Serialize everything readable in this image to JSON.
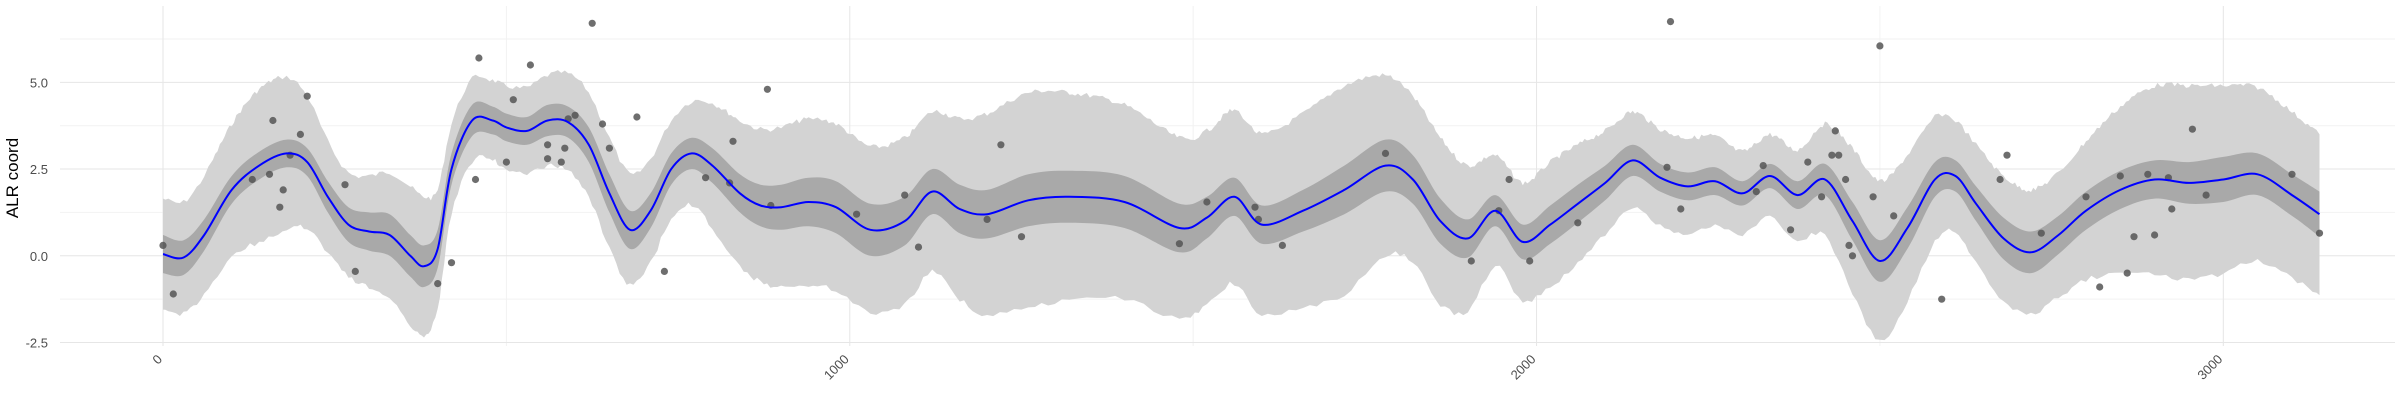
{
  "chart_data": {
    "type": "line",
    "title": "",
    "xlabel": "",
    "ylabel": "ALR coord",
    "xlim": [
      -150,
      3250
    ],
    "ylim": [
      -2.6,
      7.2
    ],
    "x_ticks": [
      0,
      1000,
      2000,
      3000
    ],
    "x_tick_labels": [
      "0",
      "1000",
      "2000",
      "3000"
    ],
    "y_ticks": [
      -2.5,
      0.0,
      2.5,
      5.0
    ],
    "y_tick_labels": [
      "-2.5",
      "0.0",
      "2.5",
      "5.0"
    ],
    "grid": true,
    "legend": "none",
    "colors": {
      "mean_line": "#0000ff",
      "inner_band": "#a9a9a9",
      "outer_band": "#d3d3d3",
      "points": "#555555",
      "grid_major": "#e6e6e6",
      "grid_minor": "#f2f2f2"
    },
    "series": [
      {
        "type": "line",
        "x": [
          0,
          30,
          60,
          100,
          140,
          180,
          210,
          240,
          270,
          300,
          330,
          360,
          380,
          400,
          420,
          450,
          480,
          500,
          530,
          560,
          590,
          620,
          650,
          680,
          710,
          740,
          770,
          800,
          840,
          870,
          900,
          940,
          980,
          1030,
          1080,
          1120,
          1160,
          1200,
          1260,
          1320,
          1400,
          1480,
          1520,
          1560,
          1600,
          1660,
          1720,
          1780,
          1820,
          1860,
          1900,
          1940,
          1980,
          2020,
          2060,
          2100,
          2140,
          2180,
          2220,
          2260,
          2300,
          2340,
          2380,
          2420,
          2460,
          2500,
          2540,
          2580,
          2610,
          2640,
          2680,
          2720,
          2760,
          2800,
          2850,
          2900,
          2950,
          3000,
          3050,
          3100,
          3140
        ],
        "y": [
          0.05,
          -0.05,
          0.6,
          1.9,
          2.6,
          2.95,
          2.7,
          1.7,
          0.9,
          0.7,
          0.6,
          0.0,
          -0.3,
          0.2,
          2.5,
          3.9,
          3.9,
          3.7,
          3.6,
          3.9,
          3.85,
          3.2,
          1.8,
          0.75,
          1.3,
          2.5,
          2.95,
          2.6,
          1.8,
          1.45,
          1.4,
          1.55,
          1.4,
          0.75,
          1.0,
          1.85,
          1.35,
          1.2,
          1.6,
          1.7,
          1.55,
          0.8,
          1.1,
          1.7,
          0.9,
          1.3,
          1.9,
          2.6,
          2.2,
          1.0,
          0.5,
          1.3,
          0.4,
          0.9,
          1.5,
          2.1,
          2.75,
          2.25,
          2.0,
          2.15,
          1.8,
          2.3,
          1.75,
          2.2,
          1.0,
          -0.15,
          0.8,
          2.2,
          2.3,
          1.5,
          0.5,
          0.1,
          0.6,
          1.3,
          1.9,
          2.2,
          2.1,
          2.2,
          2.35,
          1.75,
          1.2
        ],
        "inner_band_halfwidth": [
          0.55,
          0.5,
          0.45,
          0.4,
          0.4,
          0.4,
          0.4,
          0.45,
          0.5,
          0.55,
          0.6,
          0.6,
          0.6,
          0.55,
          0.45,
          0.45,
          0.4,
          0.4,
          0.4,
          0.45,
          0.45,
          0.5,
          0.55,
          0.55,
          0.5,
          0.45,
          0.45,
          0.5,
          0.55,
          0.6,
          0.65,
          0.7,
          0.75,
          0.75,
          0.7,
          0.65,
          0.7,
          0.7,
          0.75,
          0.75,
          0.75,
          0.7,
          0.6,
          0.55,
          0.55,
          0.6,
          0.7,
          0.75,
          0.7,
          0.65,
          0.55,
          0.45,
          0.5,
          0.55,
          0.55,
          0.5,
          0.45,
          0.4,
          0.4,
          0.4,
          0.35,
          0.35,
          0.4,
          0.45,
          0.55,
          0.6,
          0.6,
          0.5,
          0.45,
          0.5,
          0.6,
          0.6,
          0.55,
          0.55,
          0.55,
          0.55,
          0.6,
          0.65,
          0.6,
          0.6,
          0.65
        ],
        "outer_band_halfwidth": [
          1.6,
          1.6,
          1.7,
          1.9,
          2.2,
          2.2,
          1.9,
          1.6,
          1.5,
          1.6,
          1.8,
          2.0,
          2.0,
          1.7,
          1.3,
          1.2,
          1.15,
          1.2,
          1.25,
          1.3,
          1.4,
          1.5,
          1.6,
          1.6,
          1.5,
          1.4,
          1.5,
          1.8,
          2.1,
          2.2,
          2.3,
          2.4,
          2.4,
          2.4,
          2.4,
          2.3,
          2.6,
          2.9,
          3.1,
          3.0,
          2.8,
          2.6,
          2.5,
          2.5,
          2.6,
          2.8,
          3.0,
          2.6,
          2.4,
          2.4,
          2.1,
          1.6,
          1.7,
          1.8,
          1.7,
          1.5,
          1.4,
          1.4,
          1.4,
          1.3,
          1.2,
          1.2,
          1.3,
          1.6,
          2.1,
          2.3,
          2.1,
          1.8,
          1.6,
          1.7,
          1.8,
          1.8,
          1.8,
          2.0,
          2.4,
          2.7,
          2.8,
          2.7,
          2.5,
          2.4,
          2.3
        ]
      },
      {
        "type": "scatter",
        "points": [
          [
            0,
            0.3
          ],
          [
            15,
            -1.1
          ],
          [
            130,
            2.2
          ],
          [
            155,
            2.35
          ],
          [
            160,
            3.9
          ],
          [
            170,
            1.4
          ],
          [
            175,
            1.9
          ],
          [
            185,
            2.9
          ],
          [
            200,
            3.5
          ],
          [
            210,
            4.6
          ],
          [
            265,
            2.05
          ],
          [
            280,
            -0.45
          ],
          [
            400,
            -0.8
          ],
          [
            420,
            -0.2
          ],
          [
            455,
            2.2
          ],
          [
            460,
            5.7
          ],
          [
            500,
            2.7
          ],
          [
            510,
            4.5
          ],
          [
            535,
            5.5
          ],
          [
            560,
            3.2
          ],
          [
            560,
            2.8
          ],
          [
            580,
            2.7
          ],
          [
            585,
            3.1
          ],
          [
            590,
            3.95
          ],
          [
            600,
            4.05
          ],
          [
            625,
            6.7
          ],
          [
            640,
            3.8
          ],
          [
            650,
            3.1
          ],
          [
            690,
            4.0
          ],
          [
            730,
            -0.45
          ],
          [
            790,
            2.25
          ],
          [
            825,
            2.1
          ],
          [
            830,
            3.3
          ],
          [
            880,
            4.8
          ],
          [
            885,
            1.45
          ],
          [
            1010,
            1.2
          ],
          [
            1080,
            1.75
          ],
          [
            1100,
            0.25
          ],
          [
            1200,
            1.05
          ],
          [
            1220,
            3.2
          ],
          [
            1250,
            0.55
          ],
          [
            1480,
            0.35
          ],
          [
            1520,
            1.55
          ],
          [
            1590,
            1.4
          ],
          [
            1595,
            1.05
          ],
          [
            1630,
            0.3
          ],
          [
            1780,
            2.95
          ],
          [
            1905,
            -0.15
          ],
          [
            1945,
            1.3
          ],
          [
            1960,
            2.2
          ],
          [
            1990,
            -0.15
          ],
          [
            2060,
            0.95
          ],
          [
            2190,
            2.55
          ],
          [
            2195,
            6.75
          ],
          [
            2210,
            1.35
          ],
          [
            2320,
            1.85
          ],
          [
            2330,
            2.6
          ],
          [
            2370,
            0.75
          ],
          [
            2395,
            2.7
          ],
          [
            2415,
            1.7
          ],
          [
            2430,
            2.9
          ],
          [
            2435,
            3.6
          ],
          [
            2440,
            2.9
          ],
          [
            2450,
            2.2
          ],
          [
            2455,
            0.3
          ],
          [
            2460,
            0.0
          ],
          [
            2490,
            1.7
          ],
          [
            2500,
            6.05
          ],
          [
            2520,
            1.15
          ],
          [
            2590,
            -1.25
          ],
          [
            2675,
            2.2
          ],
          [
            2685,
            2.9
          ],
          [
            2735,
            0.65
          ],
          [
            2800,
            1.7
          ],
          [
            2820,
            -0.9
          ],
          [
            2850,
            2.3
          ],
          [
            2860,
            -0.5
          ],
          [
            2870,
            0.55
          ],
          [
            2890,
            2.35
          ],
          [
            2900,
            0.6
          ],
          [
            2920,
            2.25
          ],
          [
            2925,
            1.35
          ],
          [
            2955,
            3.65
          ],
          [
            2975,
            1.75
          ],
          [
            3100,
            2.35
          ],
          [
            3140,
            0.65
          ]
        ]
      }
    ]
  }
}
